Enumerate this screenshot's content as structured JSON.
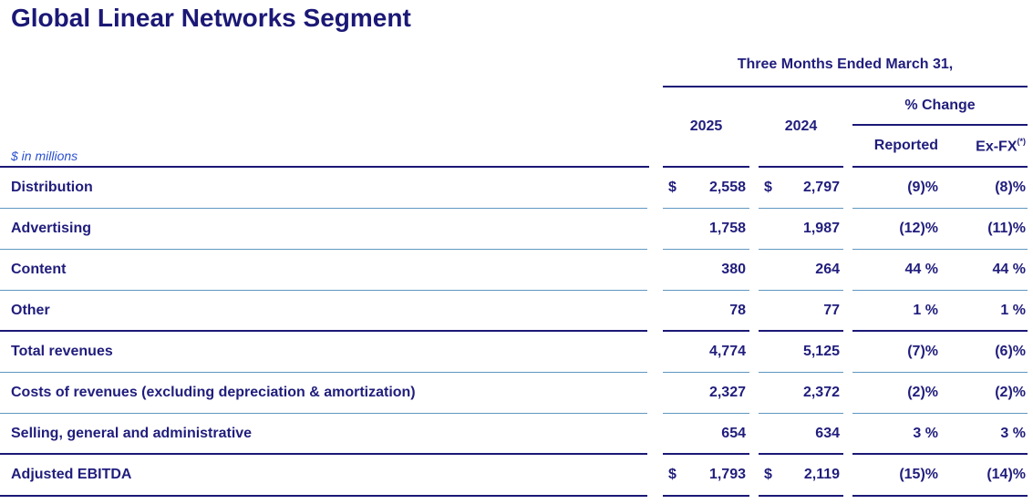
{
  "page": {
    "title": "Global Linear Networks Segment",
    "units_note": "$ in millions"
  },
  "table": {
    "period_header": "Three Months Ended March 31,",
    "year_cols": {
      "y2025": "2025",
      "y2024": "2024"
    },
    "pct_change_header": "% Change",
    "sub_headers": {
      "reported": "Reported",
      "exfx": "Ex-FX",
      "exfx_note_marker": "(*)"
    },
    "rows": [
      {
        "label": "Distribution",
        "dollar_2025": "$",
        "v2025": "2,558",
        "dollar_2024": "$",
        "v2024": "2,797",
        "reported": "(9)%",
        "exfx": "(8)%"
      },
      {
        "label": "Advertising",
        "dollar_2025": "",
        "v2025": "1,758",
        "dollar_2024": "",
        "v2024": "1,987",
        "reported": "(12)%",
        "exfx": "(11)%"
      },
      {
        "label": "Content",
        "dollar_2025": "",
        "v2025": "380",
        "dollar_2024": "",
        "v2024": "264",
        "reported": "44 %",
        "exfx": "44 %"
      },
      {
        "label": "Other",
        "dollar_2025": "",
        "v2025": "78",
        "dollar_2024": "",
        "v2024": "77",
        "reported": "1 %",
        "exfx": "1 %"
      },
      {
        "label": "Total revenues",
        "dollar_2025": "",
        "v2025": "4,774",
        "dollar_2024": "",
        "v2024": "5,125",
        "reported": "(7)%",
        "exfx": "(6)%"
      },
      {
        "label": "Costs of revenues (excluding depreciation & amortization)",
        "dollar_2025": "",
        "v2025": "2,327",
        "dollar_2024": "",
        "v2024": "2,372",
        "reported": "(2)%",
        "exfx": "(2)%"
      },
      {
        "label": "Selling, general and administrative",
        "dollar_2025": "",
        "v2025": "654",
        "dollar_2024": "",
        "v2024": "634",
        "reported": "3 %",
        "exfx": "3 %"
      },
      {
        "label": "Adjusted EBITDA",
        "dollar_2025": "$",
        "v2025": "1,793",
        "dollar_2024": "$",
        "v2024": "2,119",
        "reported": "(15)%",
        "exfx": "(14)%"
      }
    ]
  },
  "colors": {
    "navy_text": "#201d7c",
    "navy_rule": "#1b1876",
    "light_rule": "#5f97c0",
    "note_blue": "#2b50d0"
  }
}
